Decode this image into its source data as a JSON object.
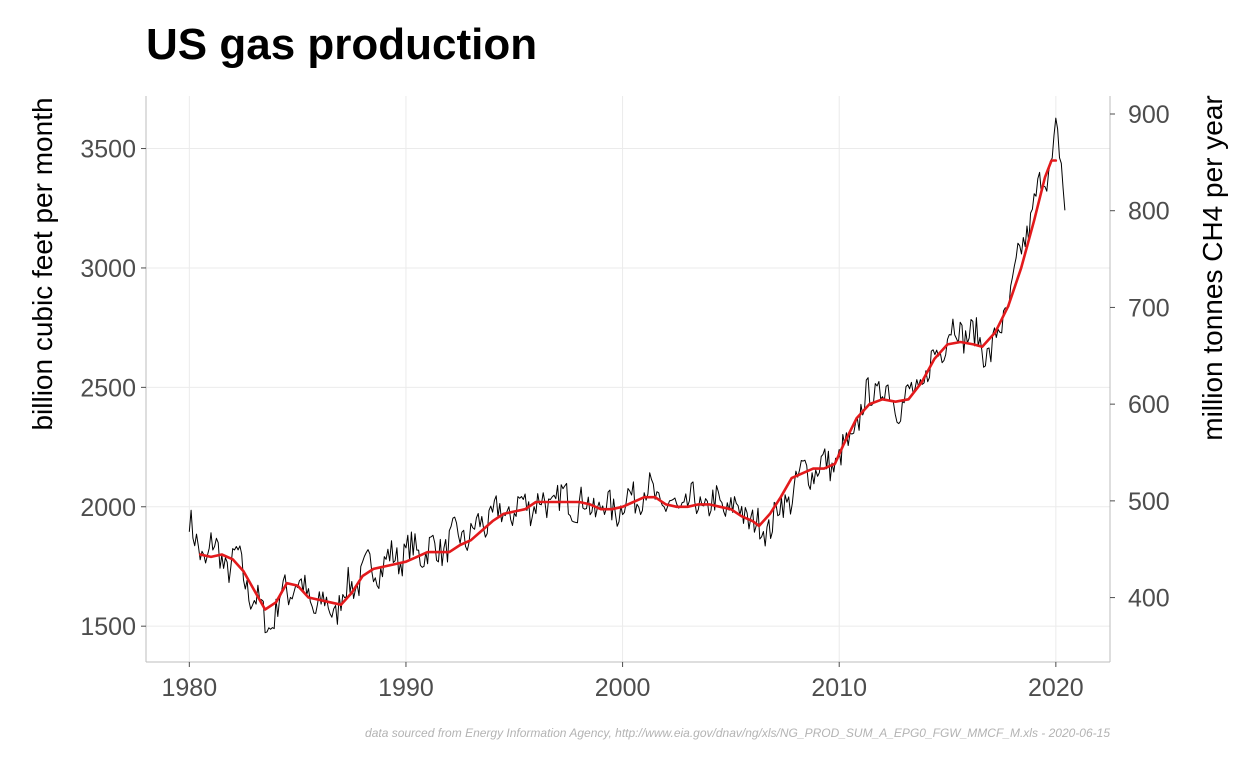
{
  "chart_data": {
    "type": "line",
    "title": "US gas production",
    "ylabel": "billion cubic feet per month",
    "y2label": "million tonnes CH4 per year",
    "caption": "data sourced from Energy Information Agency, http://www.eia.gov/dnav/ng/xls/NG_PROD_SUM_A_EPG0_FGW_MMCF_M.xls - 2020-06-15",
    "xlim": [
      1978,
      2022.5
    ],
    "ylim": [
      1350,
      3720
    ],
    "y2lim": [
      333.4,
      918.6
    ],
    "x_ticks": [
      1980,
      1990,
      2000,
      2010,
      2020
    ],
    "y_ticks": [
      1500,
      2000,
      2500,
      3000,
      3500
    ],
    "y2_ticks": [
      400,
      500,
      600,
      700,
      800,
      900
    ],
    "grid": true,
    "colors": {
      "monthly": "#000000",
      "trend": "#e31a1c",
      "grid": "#ebebeb",
      "axis_line": "#bdbdbd"
    },
    "series": [
      {
        "role": "monthly",
        "noise_amplitude": 130,
        "x": [
          1980.0,
          1980.2,
          1980.5,
          1980.8,
          1981.0,
          1981.3,
          1981.6,
          1981.9,
          1982.2,
          1982.5,
          1982.8,
          1983.1,
          1983.4,
          1983.7,
          1984.0,
          1984.3,
          1984.6,
          1984.9,
          1985.2,
          1985.5,
          1985.8,
          1986.1,
          1986.4,
          1986.7,
          1987.0,
          1987.3,
          1987.6,
          1988.0,
          1988.5,
          1989.0,
          1989.5,
          1990.0,
          1990.5,
          1991.0,
          1991.5,
          1992.0,
          1992.5,
          1993.0,
          1993.5,
          1994.0,
          1994.5,
          1995.0,
          1995.5,
          1996.0,
          1996.5,
          1997.0,
          1997.5,
          1998.0,
          1998.5,
          1999.0,
          1999.5,
          2000.0,
          2000.5,
          2001.0,
          2001.5,
          2002.0,
          2002.5,
          2003.0,
          2003.5,
          2004.0,
          2004.5,
          2005.0,
          2005.5,
          2005.9,
          2006.3,
          2006.7,
          2007.0,
          2007.5,
          2008.0,
          2008.5,
          2009.0,
          2009.5,
          2010.0,
          2010.5,
          2011.0,
          2011.5,
          2012.0,
          2012.5,
          2013.0,
          2013.5,
          2014.0,
          2014.5,
          2015.0,
          2015.5,
          2016.0,
          2016.5,
          2017.0,
          2017.5,
          2018.0,
          2018.5,
          2019.0,
          2019.5,
          2019.8,
          2020.0,
          2020.2,
          2020.4
        ],
        "values": [
          1960,
          1850,
          1800,
          1790,
          1850,
          1800,
          1760,
          1760,
          1790,
          1710,
          1650,
          1600,
          1540,
          1510,
          1560,
          1640,
          1650,
          1700,
          1650,
          1610,
          1580,
          1590,
          1580,
          1560,
          1620,
          1650,
          1680,
          1720,
          1750,
          1760,
          1790,
          1810,
          1810,
          1820,
          1820,
          1850,
          1880,
          1880,
          1930,
          1960,
          1970,
          1980,
          2020,
          2010,
          2010,
          2030,
          2030,
          2010,
          2000,
          2000,
          1990,
          2010,
          2040,
          2070,
          2040,
          2000,
          1990,
          2010,
          2010,
          2000,
          2010,
          1990,
          1990,
          1950,
          1900,
          1920,
          1960,
          2010,
          2090,
          2160,
          2160,
          2180,
          2200,
          2260,
          2400,
          2480,
          2500,
          2440,
          2440,
          2480,
          2530,
          2650,
          2720,
          2750,
          2720,
          2690,
          2640,
          2760,
          2920,
          3100,
          3270,
          3380,
          3450,
          3580,
          3450,
          3240
        ]
      },
      {
        "role": "trend",
        "x": [
          1980.5,
          1981.0,
          1981.5,
          1982.0,
          1982.5,
          1983.0,
          1983.5,
          1984.0,
          1984.5,
          1985.0,
          1985.5,
          1986.0,
          1986.5,
          1987.0,
          1987.5,
          1988.0,
          1988.5,
          1989.0,
          1989.5,
          1990.0,
          1990.5,
          1991.0,
          1991.5,
          1992.0,
          1992.5,
          1993.0,
          1993.5,
          1994.0,
          1994.5,
          1995.0,
          1995.5,
          1996.0,
          1996.5,
          1997.0,
          1997.5,
          1998.0,
          1998.5,
          1999.0,
          1999.5,
          2000.0,
          2000.5,
          2001.0,
          2001.5,
          2002.0,
          2002.5,
          2003.0,
          2003.5,
          2004.0,
          2004.5,
          2005.0,
          2005.5,
          2006.0,
          2006.3,
          2006.8,
          2007.3,
          2007.8,
          2008.3,
          2008.8,
          2009.3,
          2009.8,
          2010.2,
          2010.8,
          2011.4,
          2012.0,
          2012.6,
          2013.2,
          2013.8,
          2014.4,
          2015.0,
          2015.6,
          2016.2,
          2016.6,
          2017.2,
          2017.8,
          2018.4,
          2019.0,
          2019.5,
          2019.8,
          2020.0
        ],
        "values": [
          1800,
          1790,
          1800,
          1780,
          1730,
          1650,
          1570,
          1600,
          1680,
          1670,
          1620,
          1610,
          1600,
          1590,
          1640,
          1710,
          1740,
          1750,
          1760,
          1770,
          1790,
          1810,
          1810,
          1810,
          1840,
          1860,
          1900,
          1940,
          1970,
          1980,
          1990,
          2020,
          2020,
          2020,
          2020,
          2020,
          2010,
          1990,
          1990,
          2000,
          2020,
          2040,
          2040,
          2010,
          2000,
          2000,
          2010,
          2010,
          2000,
          1990,
          1960,
          1940,
          1920,
          1970,
          2040,
          2120,
          2140,
          2160,
          2160,
          2180,
          2260,
          2370,
          2430,
          2450,
          2440,
          2450,
          2520,
          2620,
          2680,
          2690,
          2680,
          2670,
          2730,
          2840,
          3000,
          3200,
          3380,
          3450,
          3450
        ]
      }
    ]
  }
}
